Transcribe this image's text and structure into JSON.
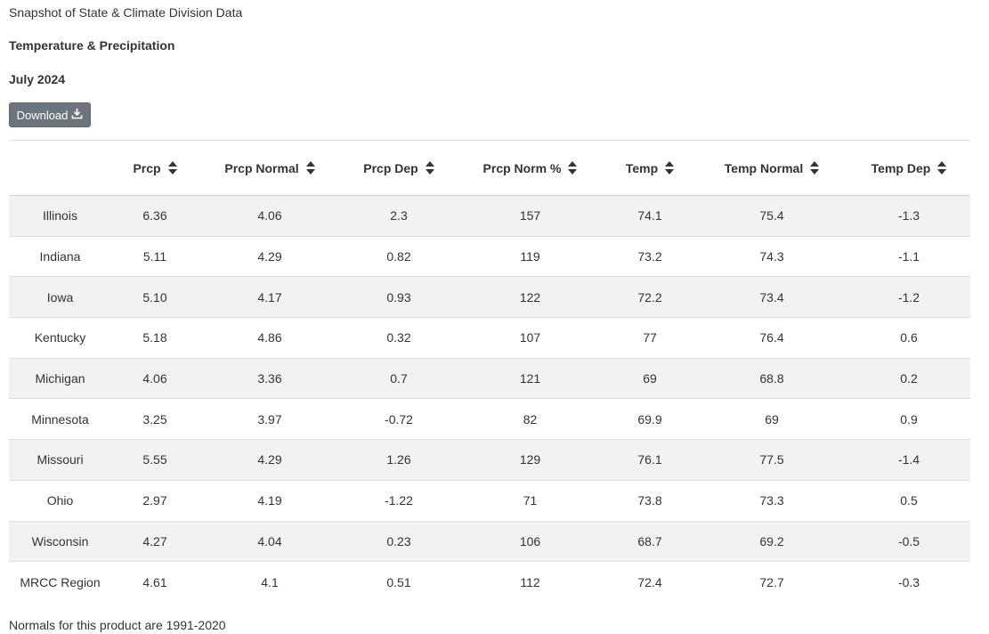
{
  "header": {
    "title": "Snapshot of State & Climate Division Data",
    "subtitle": "Temperature & Precipitation",
    "period": "July 2024",
    "download_label": "Download",
    "download_icon": "download-icon"
  },
  "table": {
    "columns": [
      "",
      "Prcp",
      "Prcp Normal",
      "Prcp Dep",
      "Prcp Norm %",
      "Temp",
      "Temp Normal",
      "Temp Dep"
    ],
    "rows": [
      [
        "Illinois",
        "6.36",
        "4.06",
        "2.3",
        "157",
        "74.1",
        "75.4",
        "-1.3"
      ],
      [
        "Indiana",
        "5.11",
        "4.29",
        "0.82",
        "119",
        "73.2",
        "74.3",
        "-1.1"
      ],
      [
        "Iowa",
        "5.10",
        "4.17",
        "0.93",
        "122",
        "72.2",
        "73.4",
        "-1.2"
      ],
      [
        "Kentucky",
        "5.18",
        "4.86",
        "0.32",
        "107",
        "77",
        "76.4",
        "0.6"
      ],
      [
        "Michigan",
        "4.06",
        "3.36",
        "0.7",
        "121",
        "69",
        "68.8",
        "0.2"
      ],
      [
        "Minnesota",
        "3.25",
        "3.97",
        "-0.72",
        "82",
        "69.9",
        "69",
        "0.9"
      ],
      [
        "Missouri",
        "5.55",
        "4.29",
        "1.26",
        "129",
        "76.1",
        "77.5",
        "-1.4"
      ],
      [
        "Ohio",
        "2.97",
        "4.19",
        "-1.22",
        "71",
        "73.8",
        "73.3",
        "0.5"
      ],
      [
        "Wisconsin",
        "4.27",
        "4.04",
        "0.23",
        "106",
        "68.7",
        "69.2",
        "-0.5"
      ],
      [
        "MRCC Region",
        "4.61",
        "4.1",
        "0.51",
        "112",
        "72.4",
        "72.7",
        "-0.3"
      ]
    ]
  },
  "footer": {
    "note": "Normals for this product are 1991-2020"
  },
  "colors": {
    "button_bg": "#6c757d",
    "stripe": "#f2f2f2"
  }
}
